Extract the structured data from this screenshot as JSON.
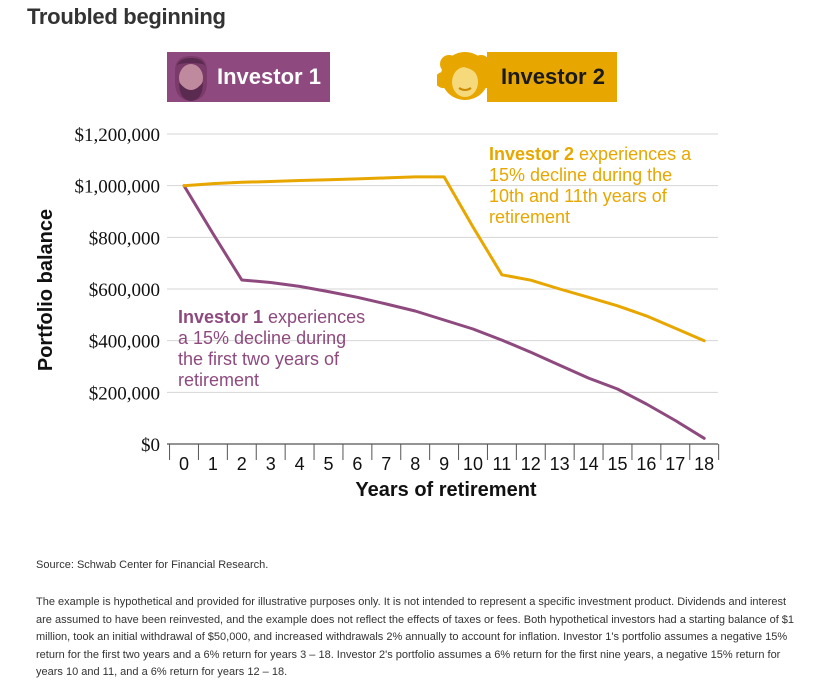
{
  "title": "Troubled beginning",
  "badges": [
    {
      "label": "Investor 1",
      "bg": "#8e4a7e",
      "text_color": "#ffffff",
      "icon": "man-avatar-icon"
    },
    {
      "label": "Investor 2",
      "bg": "#e8a700",
      "text_color": "#1a1a1a",
      "icon": "woman-avatar-icon"
    }
  ],
  "chart_data": {
    "type": "line",
    "xlabel": "Years of retirement",
    "ylabel": "Portfolio balance",
    "x": [
      0,
      1,
      2,
      3,
      4,
      5,
      6,
      7,
      8,
      9,
      10,
      11,
      12,
      13,
      14,
      15,
      16,
      17,
      18
    ],
    "ylim": [
      0,
      1200000
    ],
    "yticks": [
      0,
      200000,
      400000,
      600000,
      800000,
      1000000,
      1200000
    ],
    "ytick_labels": [
      "$0",
      "$200,000",
      "$400,000",
      "$600,000",
      "$800,000",
      "$1,000,000",
      "$1,200,000"
    ],
    "grid": true,
    "series": [
      {
        "name": "Investor 1",
        "color": "#8e4a7e",
        "values": [
          1000000,
          815000,
          635000,
          625000,
          610000,
          590000,
          568000,
          542000,
          515000,
          480000,
          445000,
          402000,
          355000,
          305000,
          255000,
          213000,
          155000,
          91000,
          22000
        ]
      },
      {
        "name": "Investor 2",
        "color": "#e8a700",
        "values": [
          1000000,
          1008000,
          1013000,
          1016000,
          1020000,
          1023000,
          1026000,
          1030000,
          1034000,
          1034000,
          840000,
          655000,
          634000,
          600000,
          568000,
          535000,
          496000,
          448000,
          400000
        ]
      }
    ],
    "annotations": [
      {
        "series": "Investor 2",
        "bold": "Investor 2",
        "lines": [
          " experiences a",
          "15% decline during the",
          "10th and 11th years of",
          "retirement"
        ]
      },
      {
        "series": "Investor 1",
        "bold": "Investor 1",
        "lines": [
          " experiences",
          "a 15% decline during",
          "the first two years of",
          "retirement"
        ]
      }
    ]
  },
  "source": "Source: Schwab Center for Financial Research.",
  "disclaimer": "The example is hypothetical and provided for illustrative purposes only. It is not intended to represent a specific investment product. Dividends and interest are assumed to have been reinvested, and the example does not reflect the effects of taxes or fees. Both hypothetical investors had a starting balance of $1 million, took an initial withdrawal of $50,000, and increased withdrawals 2% annually to account for inflation. Investor 1's portfolio assumes a negative 15% return for the first two years and a 6% return for years 3 – 18. Investor 2's portfolio assumes a 6% return for the first nine years, a negative 15% return for years 10 and 11, and a 6% return for years 12 – 18."
}
